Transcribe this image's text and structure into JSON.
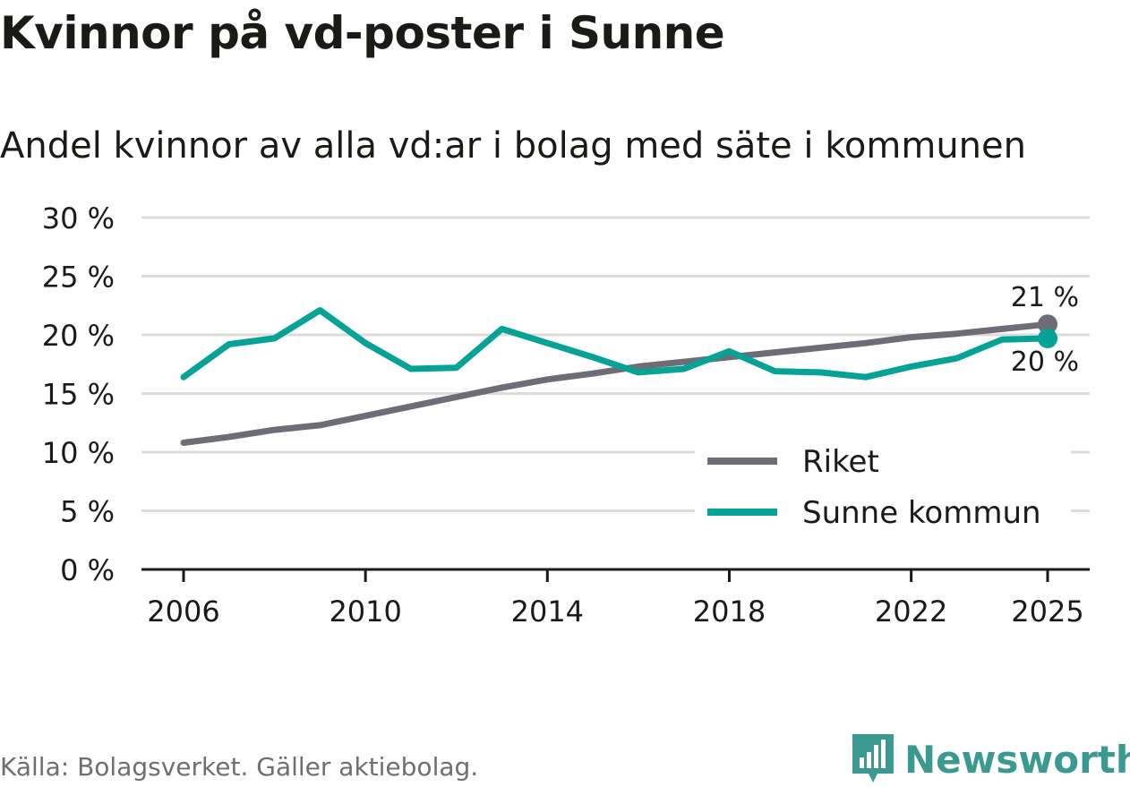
{
  "title": "Kvinnor på vd-poster i Sunne",
  "subtitle": "Andel kvinnor av alla vd:ar i bolag med säte i kommunen",
  "source": "Källa: Bolagsverket. Gäller aktiebolag.",
  "brand": "Newsworthy",
  "colors": {
    "riket": "#6e6c75",
    "sunne": "#05a296",
    "grid": "#dcdcdc",
    "axis": "#1a1a17"
  },
  "chart_data": {
    "type": "line",
    "title": "Kvinnor på vd-poster i Sunne",
    "subtitle": "Andel kvinnor av alla vd:ar i bolag med säte i kommunen",
    "xlabel": "",
    "ylabel": "",
    "x": [
      2006,
      2007,
      2008,
      2009,
      2010,
      2011,
      2012,
      2013,
      2014,
      2015,
      2016,
      2017,
      2018,
      2019,
      2020,
      2021,
      2022,
      2023,
      2024,
      2025
    ],
    "xticks": [
      "2006",
      "2010",
      "2014",
      "2018",
      "2022",
      "2025"
    ],
    "yticks": [
      "0 %",
      "5 %",
      "10 %",
      "15 %",
      "20 %",
      "25 %",
      "30 %"
    ],
    "ylim": [
      0,
      30
    ],
    "grid": true,
    "legend_position": "bottom-right",
    "series": [
      {
        "name": "Riket",
        "color": "#6e6c75",
        "values": [
          10.8,
          11.3,
          11.9,
          12.3,
          13.1,
          13.9,
          14.7,
          15.5,
          16.2,
          16.7,
          17.3,
          17.7,
          18.1,
          18.5,
          18.9,
          19.3,
          19.8,
          20.1,
          20.5,
          20.9
        ],
        "end_label": "21 %"
      },
      {
        "name": "Sunne kommun",
        "color": "#05a296",
        "values": [
          16.4,
          19.2,
          19.7,
          22.1,
          19.3,
          17.1,
          17.2,
          20.5,
          19.3,
          18.1,
          16.8,
          17.1,
          18.6,
          16.9,
          16.8,
          16.4,
          17.3,
          18.0,
          19.6,
          19.7
        ],
        "end_label": "20 %"
      }
    ]
  }
}
